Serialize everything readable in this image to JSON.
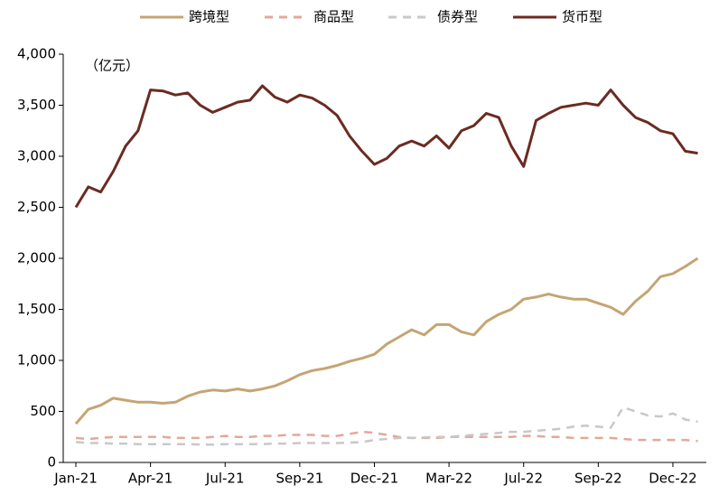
{
  "chart_data": {
    "type": "line",
    "unit_note": "（亿元）",
    "categories": [
      "Jan-21",
      null,
      null,
      null,
      null,
      null,
      "Apr-21",
      null,
      null,
      null,
      null,
      null,
      "Jul-21",
      null,
      null,
      null,
      null,
      null,
      "Sep-21",
      null,
      null,
      null,
      null,
      null,
      "Dec-21",
      null,
      null,
      null,
      null,
      null,
      "Mar-22",
      null,
      null,
      null,
      null,
      null,
      "Jul-22",
      null,
      null,
      null,
      null,
      null,
      "Sep-22",
      null,
      null,
      null,
      null,
      null,
      "Dec-22",
      null,
      null
    ],
    "series": [
      {
        "name": "跨境型",
        "color": "#c4a574",
        "dash": false,
        "values": [
          380,
          520,
          560,
          630,
          610,
          590,
          590,
          580,
          590,
          650,
          690,
          710,
          700,
          720,
          700,
          720,
          750,
          800,
          860,
          900,
          920,
          950,
          990,
          1020,
          1060,
          1160,
          1230,
          1300,
          1250,
          1350,
          1350,
          1280,
          1250,
          1380,
          1450,
          1500,
          1600,
          1620,
          1650,
          1620,
          1600,
          1600,
          1560,
          1520,
          1450,
          1580,
          1680,
          1820,
          1850,
          1920,
          2000
        ]
      },
      {
        "name": "商品型",
        "color": "#e3a89a",
        "dash": true,
        "values": [
          240,
          230,
          240,
          250,
          250,
          250,
          250,
          250,
          240,
          240,
          240,
          250,
          260,
          250,
          250,
          260,
          260,
          270,
          270,
          270,
          260,
          260,
          280,
          300,
          290,
          270,
          250,
          240,
          240,
          240,
          250,
          250,
          250,
          250,
          250,
          250,
          260,
          260,
          250,
          250,
          240,
          240,
          240,
          240,
          230,
          220,
          220,
          220,
          220,
          220,
          210
        ]
      },
      {
        "name": "债券型",
        "color": "#c8c8c8",
        "dash": true,
        "values": [
          200,
          190,
          190,
          185,
          185,
          180,
          180,
          180,
          180,
          180,
          175,
          175,
          180,
          180,
          180,
          180,
          185,
          185,
          190,
          190,
          190,
          190,
          195,
          200,
          220,
          230,
          240,
          240,
          245,
          250,
          250,
          260,
          270,
          280,
          290,
          300,
          300,
          310,
          320,
          330,
          350,
          360,
          350,
          340,
          540,
          500,
          460,
          450,
          480,
          420,
          400
        ]
      },
      {
        "name": "货币型",
        "color": "#6b2b22",
        "dash": false,
        "values": [
          2500,
          2700,
          2650,
          2850,
          3100,
          3250,
          3650,
          3640,
          3600,
          3620,
          3500,
          3430,
          3480,
          3530,
          3550,
          3690,
          3580,
          3530,
          3600,
          3570,
          3500,
          3400,
          3200,
          3050,
          2920,
          2980,
          3100,
          3150,
          3100,
          3200,
          3080,
          3250,
          3300,
          3420,
          3380,
          3100,
          2900,
          3350,
          3420,
          3480,
          3500,
          3520,
          3500,
          3650,
          3500,
          3380,
          3330,
          3250,
          3220,
          3050,
          3030
        ]
      }
    ],
    "ylim": [
      0,
      4000
    ],
    "yticks": [
      0,
      500,
      {
        "value": 1000,
        "label": "1,000"
      },
      {
        "value": 1500,
        "label": "1,500"
      },
      {
        "value": 2000,
        "label": "2,000"
      },
      {
        "value": 2500,
        "label": "2,500"
      },
      {
        "value": 3000,
        "label": "3,000"
      },
      {
        "value": 3500,
        "label": "3,500"
      },
      {
        "value": 4000,
        "label": "4,000"
      }
    ],
    "grid": false
  }
}
